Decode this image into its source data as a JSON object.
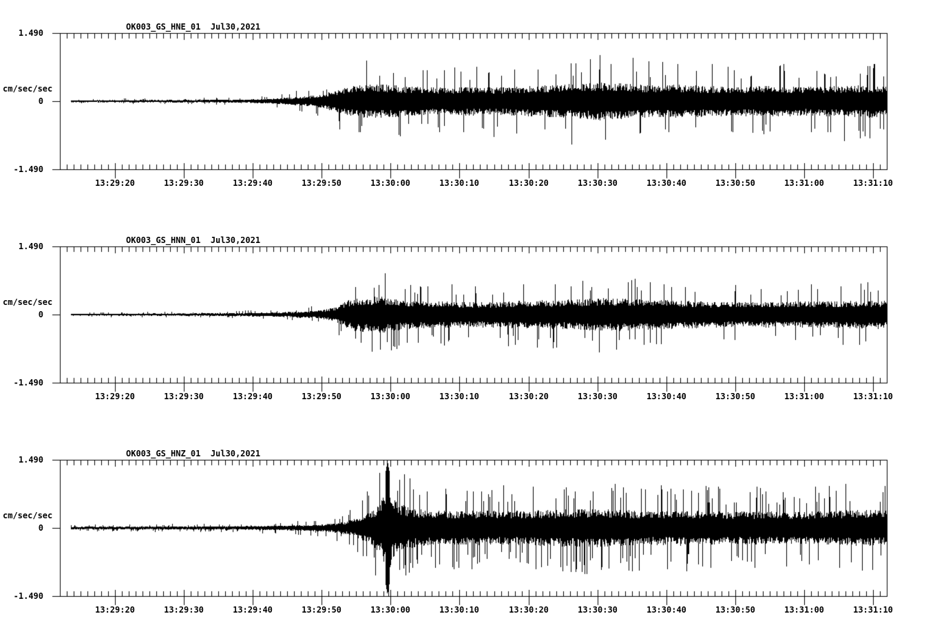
{
  "figure": {
    "background": "#ffffff",
    "ink": "#000000",
    "panel_count": 3
  },
  "chart_data": [
    {
      "type": "line",
      "subtype": "seismogram",
      "title": "OK003_GS_HNE_01  Jul30,2021",
      "station_channel": "OK003_GS_HNE_01",
      "date_label": "Jul30,2021",
      "ylabel": "cm/sec/sec",
      "ylim": [
        -1.49,
        1.49
      ],
      "y_tick_labels": [
        "1.490",
        "0",
        "-1.490"
      ],
      "y_tick_values": [
        1.49,
        0,
        -1.49
      ],
      "x_tick_labels": [
        "13:29:20",
        "13:29:30",
        "13:29:40",
        "13:29:50",
        "13:30:00",
        "13:30:10",
        "13:30:20",
        "13:30:30",
        "13:30:40",
        "13:30:50",
        "13:31:00",
        "13:31:10"
      ],
      "x_major_interval_sec": 10,
      "x_minor_interval_sec": 1,
      "grid": false,
      "trace_color": "#000000",
      "envelope_t_origin": "13:29:10",
      "envelope": [
        [
          3.6,
          0.03
        ],
        [
          15,
          0.034
        ],
        [
          22,
          0.04
        ],
        [
          28,
          0.05
        ],
        [
          32,
          0.07
        ],
        [
          34,
          0.09
        ],
        [
          36,
          0.12
        ],
        [
          38,
          0.15
        ],
        [
          40,
          0.2
        ],
        [
          42,
          0.33
        ],
        [
          44,
          0.45
        ],
        [
          47,
          0.5
        ],
        [
          50,
          0.48
        ],
        [
          53,
          0.44
        ],
        [
          57,
          0.4
        ],
        [
          61,
          0.43
        ],
        [
          65,
          0.41
        ],
        [
          69,
          0.44
        ],
        [
          73,
          0.47
        ],
        [
          77,
          0.52
        ],
        [
          80,
          0.56
        ],
        [
          84,
          0.52
        ],
        [
          88,
          0.47
        ],
        [
          92,
          0.5
        ],
        [
          96,
          0.44
        ],
        [
          100,
          0.43
        ],
        [
          104,
          0.46
        ],
        [
          108,
          0.43
        ],
        [
          112,
          0.44
        ],
        [
          116,
          0.46
        ],
        [
          120,
          0.49
        ],
        [
          122,
          0.46
        ]
      ]
    },
    {
      "type": "line",
      "subtype": "seismogram",
      "title": "OK003_GS_HNN_01  Jul30,2021",
      "station_channel": "OK003_GS_HNN_01",
      "date_label": "Jul30,2021",
      "ylabel": "cm/sec/sec",
      "ylim": [
        -1.49,
        1.49
      ],
      "y_tick_labels": [
        "1.490",
        "0",
        "-1.490"
      ],
      "y_tick_values": [
        1.49,
        0,
        -1.49
      ],
      "x_tick_labels": [
        "13:29:20",
        "13:29:30",
        "13:29:40",
        "13:29:50",
        "13:30:00",
        "13:30:10",
        "13:30:20",
        "13:30:30",
        "13:30:40",
        "13:30:50",
        "13:31:00",
        "13:31:10"
      ],
      "x_major_interval_sec": 10,
      "x_minor_interval_sec": 1,
      "grid": false,
      "trace_color": "#000000",
      "envelope_t_origin": "13:29:10",
      "envelope": [
        [
          3.6,
          0.028
        ],
        [
          15,
          0.032
        ],
        [
          22,
          0.038
        ],
        [
          28,
          0.048
        ],
        [
          32,
          0.06
        ],
        [
          35,
          0.075
        ],
        [
          38,
          0.1
        ],
        [
          40,
          0.13
        ],
        [
          42,
          0.22
        ],
        [
          43.5,
          0.4
        ],
        [
          45,
          0.5
        ],
        [
          47,
          0.52
        ],
        [
          48.5,
          0.56
        ],
        [
          50,
          0.5
        ],
        [
          52,
          0.45
        ],
        [
          55,
          0.41
        ],
        [
          58,
          0.39
        ],
        [
          62,
          0.37
        ],
        [
          66,
          0.39
        ],
        [
          70,
          0.41
        ],
        [
          74,
          0.43
        ],
        [
          78,
          0.46
        ],
        [
          82,
          0.5
        ],
        [
          86,
          0.46
        ],
        [
          90,
          0.43
        ],
        [
          94,
          0.4
        ],
        [
          98,
          0.38
        ],
        [
          102,
          0.37
        ],
        [
          106,
          0.38
        ],
        [
          110,
          0.4
        ],
        [
          114,
          0.39
        ],
        [
          118,
          0.41
        ],
        [
          122,
          0.42
        ]
      ]
    },
    {
      "type": "line",
      "subtype": "seismogram",
      "title": "OK003_GS_HNZ_01  Jul30,2021",
      "station_channel": "OK003_GS_HNZ_01",
      "date_label": "Jul30,2021",
      "ylabel": "cm/sec/sec",
      "ylim": [
        -1.49,
        1.49
      ],
      "y_tick_labels": [
        "1.490",
        "0",
        "-1.490"
      ],
      "y_tick_values": [
        1.49,
        0,
        -1.49
      ],
      "x_tick_labels": [
        "13:29:20",
        "13:29:30",
        "13:29:40",
        "13:29:50",
        "13:30:00",
        "13:30:10",
        "13:30:20",
        "13:30:30",
        "13:30:40",
        "13:30:50",
        "13:31:00",
        "13:31:10"
      ],
      "x_major_interval_sec": 10,
      "x_minor_interval_sec": 1,
      "grid": false,
      "trace_color": "#000000",
      "envelope_t_origin": "13:29:10",
      "envelope": [
        [
          3.6,
          0.04
        ],
        [
          12,
          0.044
        ],
        [
          20,
          0.048
        ],
        [
          26,
          0.052
        ],
        [
          30,
          0.058
        ],
        [
          34,
          0.07
        ],
        [
          37,
          0.085
        ],
        [
          40,
          0.11
        ],
        [
          42,
          0.15
        ],
        [
          44,
          0.22
        ],
        [
          45.5,
          0.32
        ],
        [
          47,
          0.5
        ],
        [
          48,
          0.65
        ],
        [
          48.8,
          0.85
        ],
        [
          49.5,
          1.49
        ],
        [
          50.2,
          0.9
        ],
        [
          51,
          0.75
        ],
        [
          52.5,
          0.62
        ],
        [
          54,
          0.56
        ],
        [
          57,
          0.52
        ],
        [
          60,
          0.5
        ],
        [
          64,
          0.52
        ],
        [
          68,
          0.5
        ],
        [
          72,
          0.53
        ],
        [
          76,
          0.55
        ],
        [
          80,
          0.57
        ],
        [
          84,
          0.53
        ],
        [
          88,
          0.5
        ],
        [
          92,
          0.52
        ],
        [
          96,
          0.5
        ],
        [
          100,
          0.48
        ],
        [
          104,
          0.5
        ],
        [
          108,
          0.47
        ],
        [
          112,
          0.5
        ],
        [
          116,
          0.53
        ],
        [
          119,
          0.55
        ],
        [
          122,
          0.5
        ]
      ]
    }
  ]
}
